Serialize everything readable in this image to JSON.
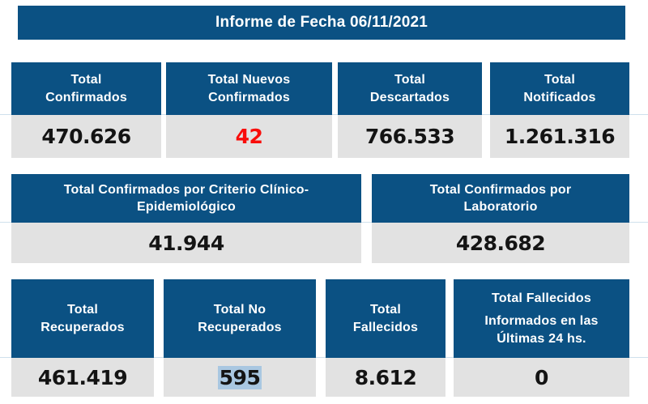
{
  "banner": {
    "title": "Informe de Fecha 06/11/2021"
  },
  "colors": {
    "header_blue": "#0b5183",
    "value_bg": "#e2e2e2",
    "alert_red": "#f90d0b",
    "selection_blue": "#a9c7e1"
  },
  "rows": {
    "row1": {
      "cards": [
        {
          "label": "Total Confirmados",
          "value": "470.626"
        },
        {
          "label": "Total Nuevos Confirmados",
          "value": "42"
        },
        {
          "label": "Total Descartados",
          "value": "766.533"
        },
        {
          "label": "Total Notificados",
          "value": "1.261.316"
        }
      ]
    },
    "row2": {
      "cards": [
        {
          "label": "Total Confirmados por Criterio Clínico-Epidemiológico",
          "value": "41.944"
        },
        {
          "label": "Total Confirmados por Laboratorio",
          "value": "428.682"
        }
      ]
    },
    "row3": {
      "cards": [
        {
          "label": "Total Recuperados",
          "value": "461.419"
        },
        {
          "label": "Total No Recuperados",
          "value": "595"
        },
        {
          "label": "Total Fallecidos",
          "value": "8.612"
        },
        {
          "label": "Total Fallecidos",
          "sublabel": "Informados en las Últimas 24 hs.",
          "value": "0"
        }
      ]
    }
  }
}
